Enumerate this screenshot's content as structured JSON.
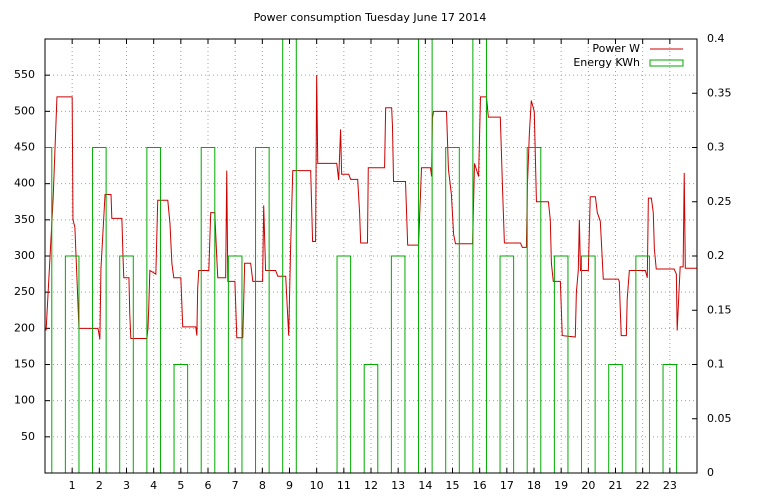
{
  "chart_data": {
    "type": "line",
    "title": "Power consumption Tuesday June 17 2014",
    "x": [
      0.04,
      0.3,
      0.44,
      1.0,
      1.03,
      1.1,
      1.18,
      1.25,
      1.95,
      2.02,
      2.06,
      2.21,
      2.43,
      2.46,
      2.83,
      2.87,
      2.9,
      3.09,
      3.12,
      3.16,
      3.75,
      3.79,
      3.82,
      3.86,
      4.08,
      4.15,
      4.52,
      4.6,
      4.67,
      4.74,
      5.0,
      5.07,
      5.55,
      5.59,
      5.62,
      5.66,
      6.03,
      6.1,
      6.25,
      6.32,
      6.36,
      6.65,
      6.69,
      6.73,
      6.99,
      7.06,
      7.28,
      7.35,
      7.57,
      7.65,
      8.01,
      8.05,
      8.12,
      8.49,
      8.57,
      8.86,
      8.97,
      9.04,
      9.12,
      9.78,
      9.85,
      9.96,
      10.0,
      10.04,
      10.74,
      10.81,
      10.88,
      10.92,
      11.18,
      11.25,
      11.51,
      11.58,
      11.62,
      11.87,
      11.9,
      12.5,
      12.54,
      12.76,
      12.79,
      12.83,
      13.27,
      13.35,
      13.75,
      13.79,
      13.86,
      14.19,
      14.23,
      14.26,
      14.3,
      14.78,
      14.85,
      14.96,
      15.04,
      15.11,
      15.74,
      15.81,
      15.96,
      16.03,
      16.25,
      16.32,
      16.76,
      16.84,
      16.91,
      17.5,
      17.57,
      17.72,
      17.76,
      17.83,
      17.9,
      18.01,
      18.09,
      18.53,
      18.6,
      18.64,
      18.71,
      18.97,
      19.04,
      19.52,
      19.56,
      19.63,
      19.67,
      19.71,
      20.0,
      20.07,
      20.26,
      20.33,
      20.44,
      20.48,
      20.55,
      21.1,
      21.14,
      21.21,
      21.4,
      21.43,
      21.51,
      22.1,
      22.17,
      22.21,
      22.32,
      22.39,
      22.43,
      22.5,
      23.16,
      23.24,
      23.27,
      23.38,
      23.49,
      23.53,
      23.57,
      24.0
    ],
    "series": [
      {
        "name": "Power W",
        "color": "#cc0000",
        "type": "line",
        "axis": "y",
        "values": [
          197,
          380,
          520,
          520,
          350,
          340,
          265,
          200,
          200,
          185,
          283,
          385,
          385,
          352,
          352,
          300,
          270,
          270,
          220,
          186,
          186,
          200,
          230,
          280,
          275,
          377,
          377,
          345,
          290,
          270,
          270,
          202,
          202,
          190,
          255,
          280,
          280,
          360,
          360,
          300,
          270,
          270,
          418,
          265,
          265,
          187,
          187,
          290,
          290,
          265,
          265,
          370,
          280,
          280,
          272,
          272,
          190,
          310,
          418,
          418,
          320,
          320,
          550,
          428,
          428,
          405,
          475,
          413,
          413,
          406,
          406,
          360,
          318,
          318,
          422,
          422,
          505,
          505,
          480,
          403,
          403,
          315,
          315,
          355,
          422,
          422,
          410,
          490,
          500,
          500,
          420,
          385,
          330,
          317,
          317,
          428,
          410,
          520,
          520,
          492,
          492,
          395,
          318,
          318,
          312,
          312,
          400,
          470,
          515,
          500,
          375,
          375,
          350,
          290,
          265,
          265,
          190,
          188,
          250,
          280,
          350,
          280,
          280,
          382,
          382,
          360,
          348,
          320,
          268,
          268,
          265,
          190,
          190,
          240,
          280,
          280,
          270,
          380,
          380,
          360,
          310,
          282,
          282,
          275,
          197,
          285,
          285,
          415,
          283,
          283
        ]
      },
      {
        "name": "Energy KWh",
        "color": "#00aa00",
        "type": "bar",
        "axis": "y2",
        "x": [
          0,
          1,
          2,
          3,
          4,
          5,
          6,
          7,
          8,
          9,
          10,
          11,
          12,
          13,
          14,
          15,
          16,
          17,
          18,
          19,
          20,
          21,
          22,
          23
        ],
        "values": [
          0.3,
          0.2,
          0.3,
          0.2,
          0.3,
          0.1,
          0.3,
          0.2,
          0.3,
          0.4,
          0,
          0.2,
          0.1,
          0.2,
          0.4,
          0.3,
          0.4,
          0.2,
          0.3,
          0.2,
          0.2,
          0.1,
          0.2,
          0.1
        ]
      }
    ],
    "xlim": [
      0,
      24
    ],
    "xticks": [
      1,
      2,
      3,
      4,
      5,
      6,
      7,
      8,
      9,
      10,
      11,
      12,
      13,
      14,
      15,
      16,
      17,
      18,
      19,
      20,
      21,
      22,
      23
    ],
    "ylim": [
      0,
      600
    ],
    "yticks": [
      50,
      100,
      150,
      200,
      250,
      300,
      350,
      400,
      450,
      500,
      550
    ],
    "y2lim": [
      0,
      0.4
    ],
    "y2ticks": [
      0,
      0.05,
      0.1,
      0.15,
      0.2,
      0.25,
      0.3,
      0.35,
      0.4
    ],
    "grid": true,
    "legend": "top-right"
  }
}
